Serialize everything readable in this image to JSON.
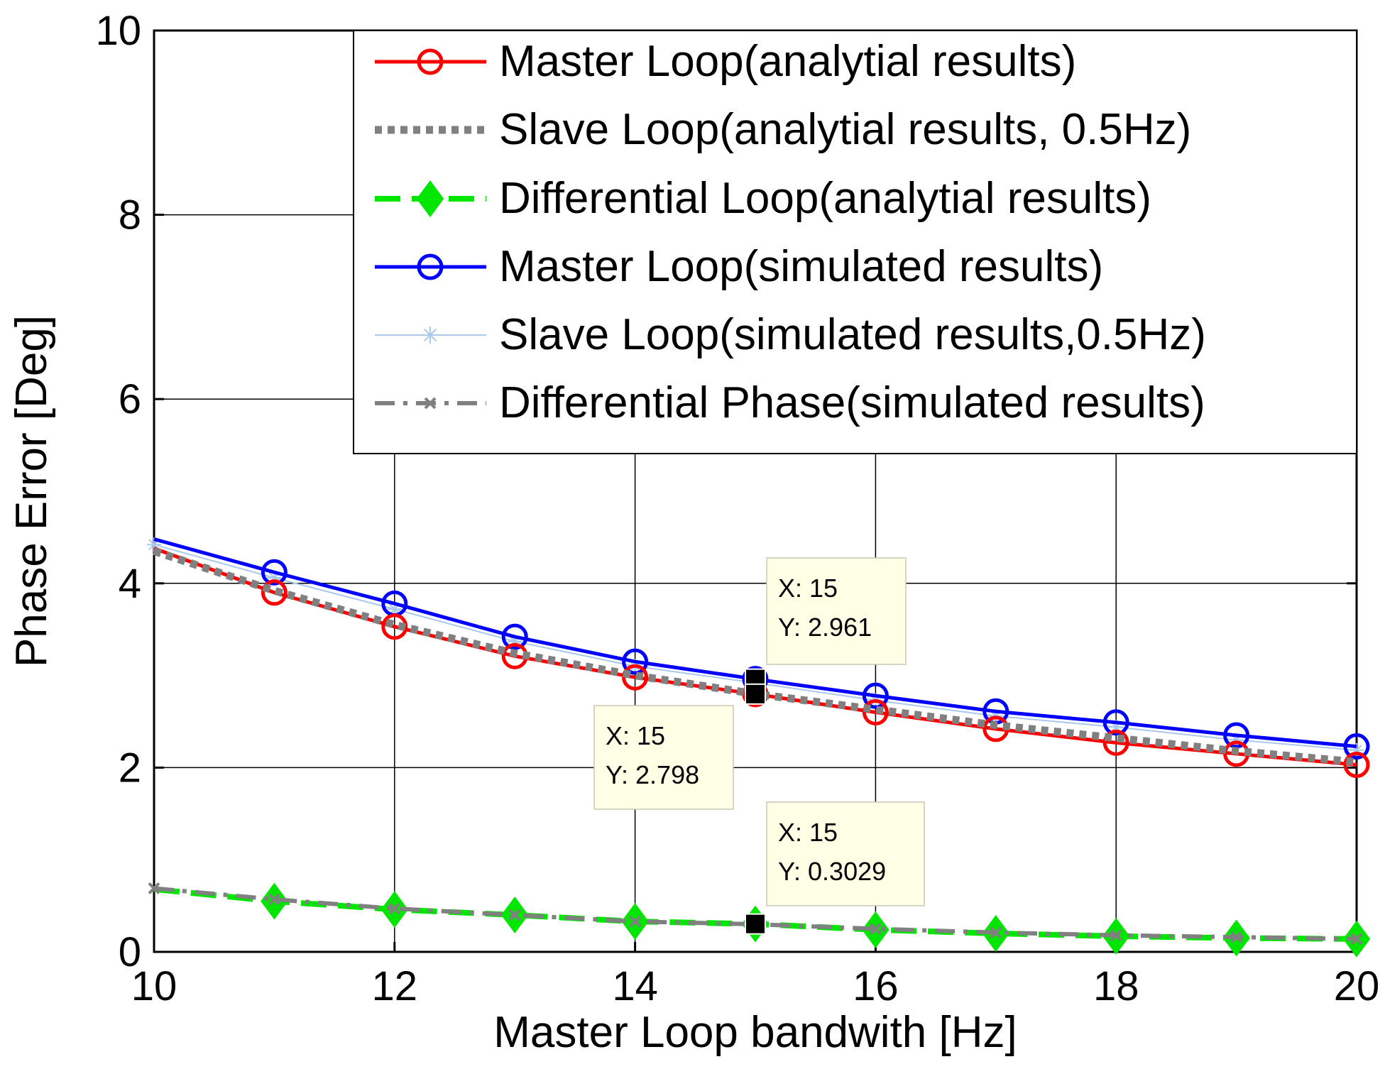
{
  "chart_data": {
    "type": "line",
    "title": "",
    "xlabel": "Master Loop bandwith [Hz]",
    "ylabel": "Phase Error [Deg]",
    "xlim": [
      10,
      20
    ],
    "ylim": [
      0,
      10
    ],
    "grid": true,
    "legend_position": "top-right",
    "x_ticks": [
      10,
      12,
      14,
      16,
      18,
      20
    ],
    "x_tick_labels": [
      "10",
      "12",
      "14",
      "16",
      "18",
      "20"
    ],
    "y_ticks": [
      0,
      2,
      4,
      6,
      8,
      10
    ],
    "y_tick_labels": [
      "0",
      "2",
      "4",
      "6",
      "8",
      "10"
    ],
    "x": [
      10,
      11,
      12,
      13,
      14,
      15,
      16,
      17,
      18,
      19,
      20
    ],
    "series": [
      {
        "name": "Master Loop(analytial results)",
        "color": "#ff0000",
        "style": "solid-circle-marker",
        "x": [
          10,
          11,
          12,
          13,
          14,
          15,
          16,
          17,
          18,
          19,
          20
        ],
        "values": [
          4.38,
          3.9,
          3.53,
          3.21,
          2.98,
          2.798,
          2.6,
          2.42,
          2.27,
          2.15,
          2.03
        ],
        "marker_x": [
          11,
          12,
          13,
          14,
          15,
          16,
          17,
          18,
          19,
          20
        ]
      },
      {
        "name": "Slave Loop(analytial results, 0.5Hz)",
        "color": "#808080",
        "style": "thick-dotted",
        "x": [
          10,
          11,
          12,
          13,
          14,
          15,
          16,
          17,
          18,
          19,
          20
        ],
        "values": [
          4.35,
          3.92,
          3.55,
          3.24,
          3.0,
          2.8,
          2.63,
          2.46,
          2.32,
          2.18,
          2.06
        ]
      },
      {
        "name": "Differential Loop(analytial results)",
        "color": "#00e600",
        "style": "dashed-diamond-marker",
        "x": [
          10,
          11,
          12,
          13,
          14,
          15,
          16,
          17,
          18,
          19,
          20
        ],
        "values": [
          0.68,
          0.55,
          0.46,
          0.4,
          0.33,
          0.3029,
          0.24,
          0.2,
          0.17,
          0.15,
          0.14
        ],
        "marker_x": [
          11,
          12,
          13,
          14,
          15,
          16,
          17,
          18,
          19,
          20
        ]
      },
      {
        "name": "Master Loop(simulated results)",
        "color": "#0000ff",
        "style": "solid-circle-marker",
        "x": [
          10,
          11,
          12,
          13,
          14,
          15,
          16,
          17,
          18,
          19,
          20
        ],
        "values": [
          4.48,
          4.12,
          3.78,
          3.42,
          3.15,
          2.961,
          2.78,
          2.61,
          2.49,
          2.35,
          2.23
        ],
        "marker_x": [
          11,
          12,
          13,
          14,
          15,
          16,
          17,
          18,
          19,
          20
        ]
      },
      {
        "name": "Slave Loop(simulated results,0.5Hz)",
        "color": "#a8c8ec",
        "style": "thin-solid-star-marker",
        "x": [
          10,
          11,
          12,
          13,
          14,
          15,
          16,
          17,
          18,
          19,
          20
        ],
        "values": [
          4.42,
          4.06,
          3.72,
          3.37,
          3.1,
          2.92,
          2.73,
          2.56,
          2.44,
          2.3,
          2.19
        ]
      },
      {
        "name": "Differential Phase(simulated results)",
        "color": "#808080",
        "style": "dash-dot-x-marker",
        "x": [
          10,
          11,
          12,
          13,
          14,
          15,
          16,
          17,
          18,
          19,
          20
        ],
        "values": [
          0.69,
          0.57,
          0.47,
          0.4,
          0.33,
          0.3,
          0.25,
          0.21,
          0.18,
          0.16,
          0.14
        ]
      }
    ],
    "annotations": [
      {
        "x_text": "X: 15",
        "y_text": "Y: 2.961",
        "x": 15,
        "y": 2.961
      },
      {
        "x_text": "X: 15",
        "y_text": "Y: 2.798",
        "x": 15,
        "y": 2.798
      },
      {
        "x_text": "X: 15",
        "y_text": "Y: 0.3029",
        "x": 15,
        "y": 0.3029
      }
    ]
  }
}
